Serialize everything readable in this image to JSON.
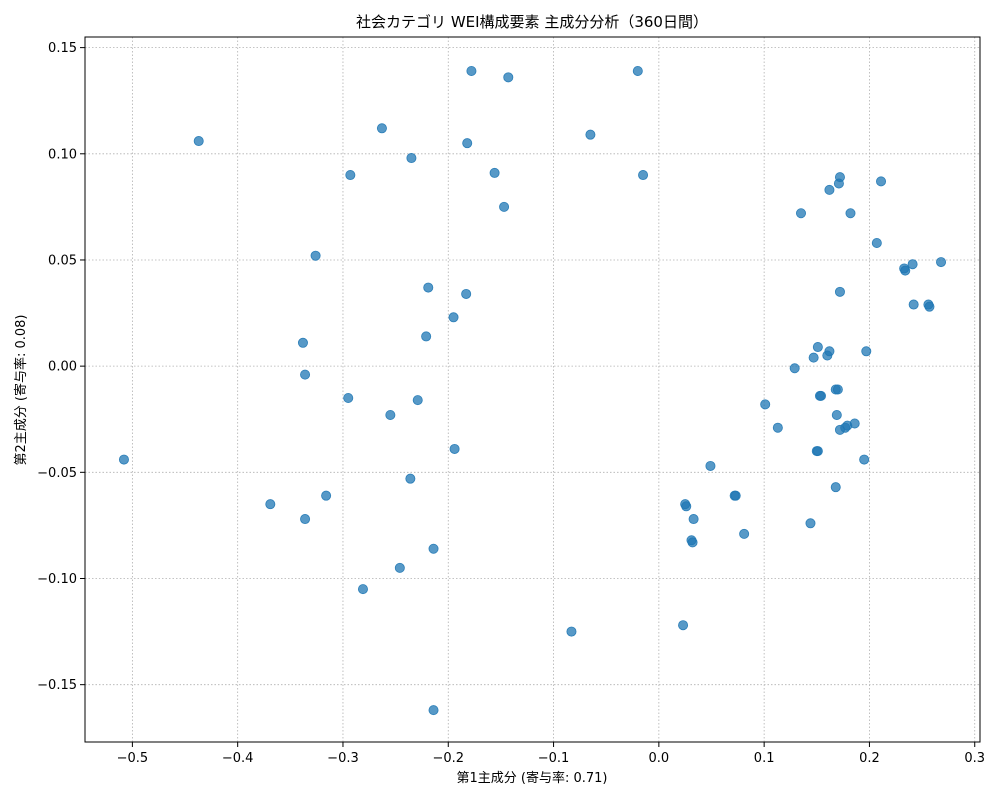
{
  "chart_data": {
    "type": "scatter",
    "title": "社会カテゴリ WEI構成要素 主成分分析（360日間）",
    "xlabel": "第1主成分 (寄与率: 0.71)",
    "ylabel": "第2主成分 (寄与率: 0.08)",
    "xlim": [
      -0.545,
      0.305
    ],
    "ylim": [
      -0.177,
      0.155
    ],
    "xticks": [
      -0.5,
      -0.4,
      -0.3,
      -0.2,
      -0.1,
      0.0,
      0.1,
      0.2,
      0.3
    ],
    "xtick_labels": [
      "−0.5",
      "−0.4",
      "−0.3",
      "−0.2",
      "−0.1",
      "0.0",
      "0.1",
      "0.2",
      "0.3"
    ],
    "yticks": [
      -0.15,
      -0.1,
      -0.05,
      0.0,
      0.05,
      0.1,
      0.15
    ],
    "ytick_labels": [
      "−0.15",
      "−0.10",
      "−0.05",
      "0.00",
      "0.05",
      "0.10",
      "0.15"
    ],
    "grid": true,
    "marker_color": "#1f77b4",
    "points": [
      [
        -0.508,
        -0.044
      ],
      [
        -0.437,
        0.106
      ],
      [
        -0.369,
        -0.065
      ],
      [
        -0.338,
        0.011
      ],
      [
        -0.336,
        -0.004
      ],
      [
        -0.336,
        -0.072
      ],
      [
        -0.326,
        0.052
      ],
      [
        -0.316,
        -0.061
      ],
      [
        -0.295,
        -0.015
      ],
      [
        -0.293,
        0.09
      ],
      [
        -0.281,
        -0.105
      ],
      [
        -0.263,
        0.112
      ],
      [
        -0.255,
        -0.023
      ],
      [
        -0.246,
        -0.095
      ],
      [
        -0.235,
        0.098
      ],
      [
        -0.236,
        -0.053
      ],
      [
        -0.229,
        -0.016
      ],
      [
        -0.221,
        0.014
      ],
      [
        -0.219,
        0.037
      ],
      [
        -0.214,
        -0.086
      ],
      [
        -0.214,
        -0.162
      ],
      [
        -0.195,
        0.023
      ],
      [
        -0.194,
        -0.039
      ],
      [
        -0.183,
        0.034
      ],
      [
        -0.182,
        0.105
      ],
      [
        -0.178,
        0.139
      ],
      [
        -0.156,
        0.091
      ],
      [
        -0.147,
        0.075
      ],
      [
        -0.143,
        0.136
      ],
      [
        -0.083,
        -0.125
      ],
      [
        -0.065,
        0.109
      ],
      [
        -0.02,
        0.139
      ],
      [
        -0.015,
        0.09
      ],
      [
        0.023,
        -0.122
      ],
      [
        0.025,
        -0.065
      ],
      [
        0.026,
        -0.066
      ],
      [
        0.031,
        -0.082
      ],
      [
        0.032,
        -0.083
      ],
      [
        0.033,
        -0.072
      ],
      [
        0.049,
        -0.047
      ],
      [
        0.072,
        -0.061
      ],
      [
        0.073,
        -0.061
      ],
      [
        0.081,
        -0.079
      ],
      [
        0.101,
        -0.018
      ],
      [
        0.113,
        -0.029
      ],
      [
        0.129,
        -0.001
      ],
      [
        0.135,
        0.072
      ],
      [
        0.144,
        -0.074
      ],
      [
        0.147,
        0.004
      ],
      [
        0.15,
        -0.04
      ],
      [
        0.151,
        -0.04
      ],
      [
        0.151,
        0.009
      ],
      [
        0.153,
        -0.014
      ],
      [
        0.154,
        -0.014
      ],
      [
        0.16,
        0.005
      ],
      [
        0.162,
        0.007
      ],
      [
        0.162,
        0.083
      ],
      [
        0.168,
        -0.011
      ],
      [
        0.168,
        -0.057
      ],
      [
        0.169,
        -0.023
      ],
      [
        0.17,
        -0.011
      ],
      [
        0.171,
        0.086
      ],
      [
        0.172,
        -0.03
      ],
      [
        0.172,
        0.089
      ],
      [
        0.172,
        0.035
      ],
      [
        0.177,
        -0.029
      ],
      [
        0.179,
        -0.028
      ],
      [
        0.182,
        0.072
      ],
      [
        0.186,
        -0.027
      ],
      [
        0.195,
        -0.044
      ],
      [
        0.197,
        0.007
      ],
      [
        0.207,
        0.058
      ],
      [
        0.211,
        0.087
      ],
      [
        0.233,
        0.046
      ],
      [
        0.234,
        0.045
      ],
      [
        0.241,
        0.048
      ],
      [
        0.242,
        0.029
      ],
      [
        0.256,
        0.029
      ],
      [
        0.257,
        0.028
      ],
      [
        0.268,
        0.049
      ]
    ]
  }
}
